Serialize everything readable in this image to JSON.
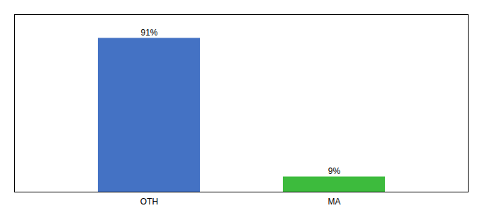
{
  "chart_data": {
    "type": "bar",
    "categories": [
      "OTH",
      "MA"
    ],
    "values": [
      91,
      9
    ],
    "value_labels": [
      "91%",
      "9%"
    ],
    "colors": [
      "#4472c4",
      "#3dbb3d"
    ],
    "ylim": [
      0,
      105
    ],
    "data_labels": true,
    "tick_labels": "x"
  }
}
